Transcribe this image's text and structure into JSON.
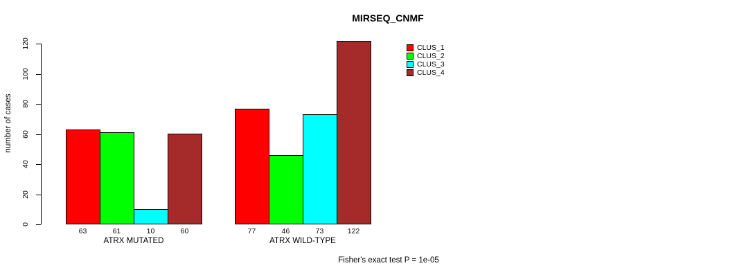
{
  "chart": {
    "title": "MIRSEQ_CNMF",
    "ylabel": "number of cases",
    "footer": "Fisher's exact test P = 1e-05"
  },
  "chart_data": {
    "type": "bar",
    "title": "MIRSEQ_CNMF",
    "xlabel": "",
    "ylabel": "number of cases",
    "categories": [
      "ATRX MUTATED",
      "ATRX WILD-TYPE"
    ],
    "series": [
      {
        "name": "CLUS_1",
        "color": "#ff0000",
        "values": [
          63,
          77
        ]
      },
      {
        "name": "CLUS_2",
        "color": "#00ff00",
        "values": [
          61,
          46
        ]
      },
      {
        "name": "CLUS_3",
        "color": "#00ffff",
        "values": [
          10,
          73
        ]
      },
      {
        "name": "CLUS_4",
        "color": "#a52a2a",
        "values": [
          60,
          122
        ]
      }
    ],
    "yticks": [
      0,
      20,
      40,
      60,
      80,
      100,
      120
    ],
    "ylim": [
      0,
      124
    ],
    "grid": false,
    "legend_position": "top-right",
    "bar_value_labels_shown": true,
    "annotation": "Fisher's exact test P = 1e-05"
  }
}
